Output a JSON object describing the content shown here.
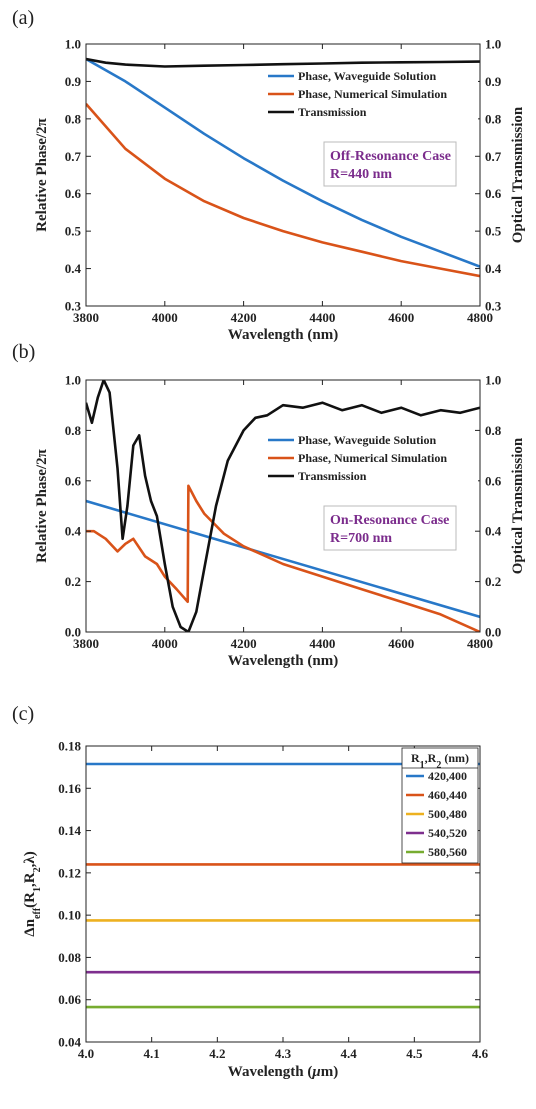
{
  "chart_data": [
    {
      "panel_label": "(a)",
      "type": "line",
      "xlabel": "Wavelength (nm)",
      "ylabel_left": "Relative Phase/2π",
      "ylabel_right": "Optical Transmission",
      "xlim": [
        3800,
        4800
      ],
      "ylim_left": [
        0.3,
        1.0
      ],
      "ylim_right": [
        0.3,
        1.0
      ],
      "xticks": [
        "3800",
        "4000",
        "4200",
        "4400",
        "4600",
        "4800"
      ],
      "yticks_left": [
        "0.3",
        "0.4",
        "0.5",
        "0.6",
        "0.7",
        "0.8",
        "0.9",
        "1.0"
      ],
      "yticks_right": [
        "0.3",
        "0.4",
        "0.5",
        "0.6",
        "0.7",
        "0.8",
        "0.9",
        "1.0"
      ],
      "legend_placement": "top-right",
      "annotation": [
        "Off-Resonance Case",
        "R=440 nm"
      ],
      "annotation_color": "#7b2c8c",
      "series": [
        {
          "name": "Phase, Waveguide Solution",
          "color": "#2878c8",
          "axis": "left",
          "x": [
            3800,
            3900,
            4000,
            4100,
            4200,
            4300,
            4400,
            4500,
            4600,
            4700,
            4800
          ],
          "y": [
            0.96,
            0.9,
            0.83,
            0.76,
            0.695,
            0.635,
            0.58,
            0.53,
            0.485,
            0.445,
            0.405
          ]
        },
        {
          "name": "Phase, Numerical Simulation",
          "color": "#d95319",
          "axis": "left",
          "x": [
            3800,
            3900,
            4000,
            4100,
            4200,
            4300,
            4400,
            4500,
            4600,
            4700,
            4800
          ],
          "y": [
            0.84,
            0.72,
            0.64,
            0.58,
            0.535,
            0.5,
            0.47,
            0.445,
            0.42,
            0.4,
            0.38
          ]
        },
        {
          "name": "Transmission",
          "color": "#111111",
          "axis": "right",
          "x": [
            3800,
            3850,
            3900,
            4000,
            4100,
            4200,
            4300,
            4400,
            4500,
            4600,
            4700,
            4800
          ],
          "y": [
            0.96,
            0.95,
            0.945,
            0.94,
            0.942,
            0.944,
            0.946,
            0.948,
            0.95,
            0.951,
            0.952,
            0.953
          ]
        }
      ]
    },
    {
      "panel_label": "(b)",
      "type": "line",
      "xlabel": "Wavelength (nm)",
      "ylabel_left": "Relative Phase/2π",
      "ylabel_right": "Optical Transmission",
      "xlim": [
        3800,
        4800
      ],
      "ylim_left": [
        0.0,
        1.0
      ],
      "ylim_right": [
        0.0,
        1.0
      ],
      "xticks": [
        "3800",
        "4000",
        "4200",
        "4400",
        "4600",
        "4800"
      ],
      "yticks_left": [
        "0.0",
        "0.2",
        "0.4",
        "0.6",
        "0.8",
        "1.0"
      ],
      "yticks_right": [
        "0.0",
        "0.2",
        "0.4",
        "0.6",
        "0.8",
        "1.0"
      ],
      "legend_placement": "middle-right",
      "annotation": [
        "On-Resonance Case",
        "R=700 nm"
      ],
      "annotation_color": "#7b2c8c",
      "series": [
        {
          "name": "Phase, Waveguide Solution",
          "color": "#2878c8",
          "axis": "left",
          "x": [
            3800,
            4800
          ],
          "y": [
            0.52,
            0.06
          ]
        },
        {
          "name": "Phase, Numerical Simulation",
          "color": "#d95319",
          "axis": "left",
          "x": [
            3800,
            3820,
            3850,
            3880,
            3900,
            3920,
            3950,
            3980,
            4000,
            4030,
            4058,
            4060,
            4080,
            4100,
            4150,
            4200,
            4300,
            4400,
            4500,
            4600,
            4700,
            4800
          ],
          "y": [
            0.4,
            0.4,
            0.37,
            0.32,
            0.35,
            0.37,
            0.3,
            0.27,
            0.22,
            0.17,
            0.12,
            0.58,
            0.52,
            0.47,
            0.39,
            0.34,
            0.27,
            0.22,
            0.17,
            0.12,
            0.07,
            0.0
          ]
        },
        {
          "name": "Transmission",
          "color": "#111111",
          "axis": "right",
          "x": [
            3800,
            3815,
            3830,
            3845,
            3860,
            3880,
            3893,
            3905,
            3920,
            3935,
            3950,
            3965,
            3980,
            4000,
            4020,
            4040,
            4060,
            4080,
            4100,
            4130,
            4160,
            4200,
            4230,
            4260,
            4300,
            4350,
            4400,
            4450,
            4500,
            4550,
            4600,
            4650,
            4700,
            4750,
            4800
          ],
          "y": [
            0.91,
            0.83,
            0.93,
            1.0,
            0.95,
            0.65,
            0.37,
            0.5,
            0.74,
            0.78,
            0.62,
            0.52,
            0.46,
            0.27,
            0.1,
            0.02,
            0.0,
            0.08,
            0.25,
            0.5,
            0.68,
            0.8,
            0.85,
            0.86,
            0.9,
            0.89,
            0.91,
            0.88,
            0.9,
            0.87,
            0.89,
            0.86,
            0.88,
            0.87,
            0.89
          ]
        }
      ]
    },
    {
      "panel_label": "(c)",
      "type": "line",
      "xlabel": "Wavelength (μm)",
      "ylabel": "Δn_eff(R_1,R_2,λ)",
      "xlim": [
        4.0,
        4.6
      ],
      "ylim": [
        0.04,
        0.18
      ],
      "xticks": [
        "4.0",
        "4.1",
        "4.2",
        "4.3",
        "4.4",
        "4.5",
        "4.6"
      ],
      "yticks": [
        "0.04",
        "0.06",
        "0.08",
        "0.10",
        "0.12",
        "0.14",
        "0.16",
        "0.18"
      ],
      "legend_title": "R1,R2 (nm)",
      "legend_placement": "top-right",
      "series": [
        {
          "name": "420,400",
          "color": "#2878c8",
          "x": [
            4.0,
            4.6
          ],
          "y": [
            0.1715,
            0.1715
          ]
        },
        {
          "name": "460,440",
          "color": "#d95319",
          "x": [
            4.0,
            4.6
          ],
          "y": [
            0.124,
            0.124
          ]
        },
        {
          "name": "500,480",
          "color": "#edb120",
          "x": [
            4.0,
            4.6
          ],
          "y": [
            0.0975,
            0.0975
          ]
        },
        {
          "name": "540,520",
          "color": "#7e2f8e",
          "x": [
            4.0,
            4.6
          ],
          "y": [
            0.073,
            0.073
          ]
        },
        {
          "name": "580,560",
          "color": "#77ac30",
          "x": [
            4.0,
            4.6
          ],
          "y": [
            0.0565,
            0.0565
          ]
        }
      ]
    }
  ]
}
